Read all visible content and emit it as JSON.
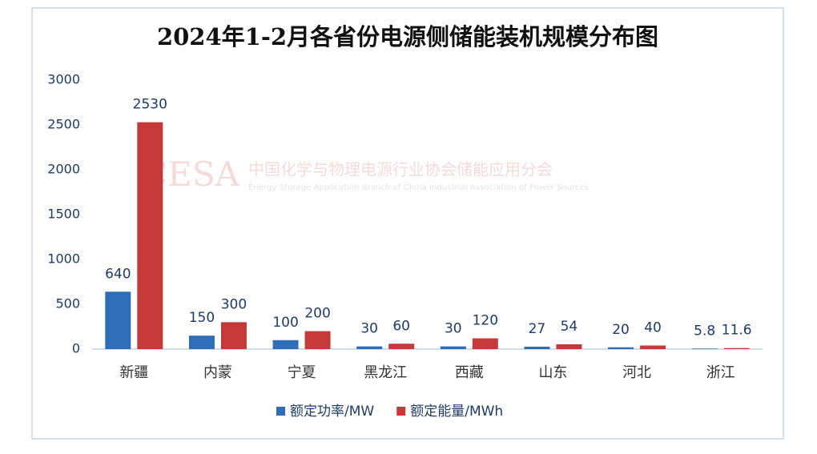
{
  "chart_data": {
    "type": "bar",
    "title": "2024年1-2月各省份电源侧储能装机规模分布图",
    "watermark": {
      "logo": "CESA",
      "name": "中国化学与物理电源行业协会储能应用分会",
      "english": "Energy Storage Application Branch of China Industrial Association of Power Sources"
    },
    "categories": [
      "新疆",
      "内蒙",
      "宁夏",
      "黑龙江",
      "西藏",
      "山东",
      "河北",
      "浙江"
    ],
    "series": [
      {
        "name": "额定功率/MW",
        "color": "#2f6db8",
        "values": [
          640,
          150,
          100,
          30,
          30,
          27,
          20,
          5.8
        ]
      },
      {
        "name": "额定能量/MWh",
        "color": "#c43a3a",
        "values": [
          2530,
          300,
          200,
          60,
          120,
          54,
          40,
          11.6
        ]
      }
    ],
    "ylim": [
      0,
      3000
    ],
    "yticks": [
      0,
      500,
      1000,
      1500,
      2000,
      2500,
      3000
    ],
    "grid": false,
    "legend": "bottom"
  }
}
